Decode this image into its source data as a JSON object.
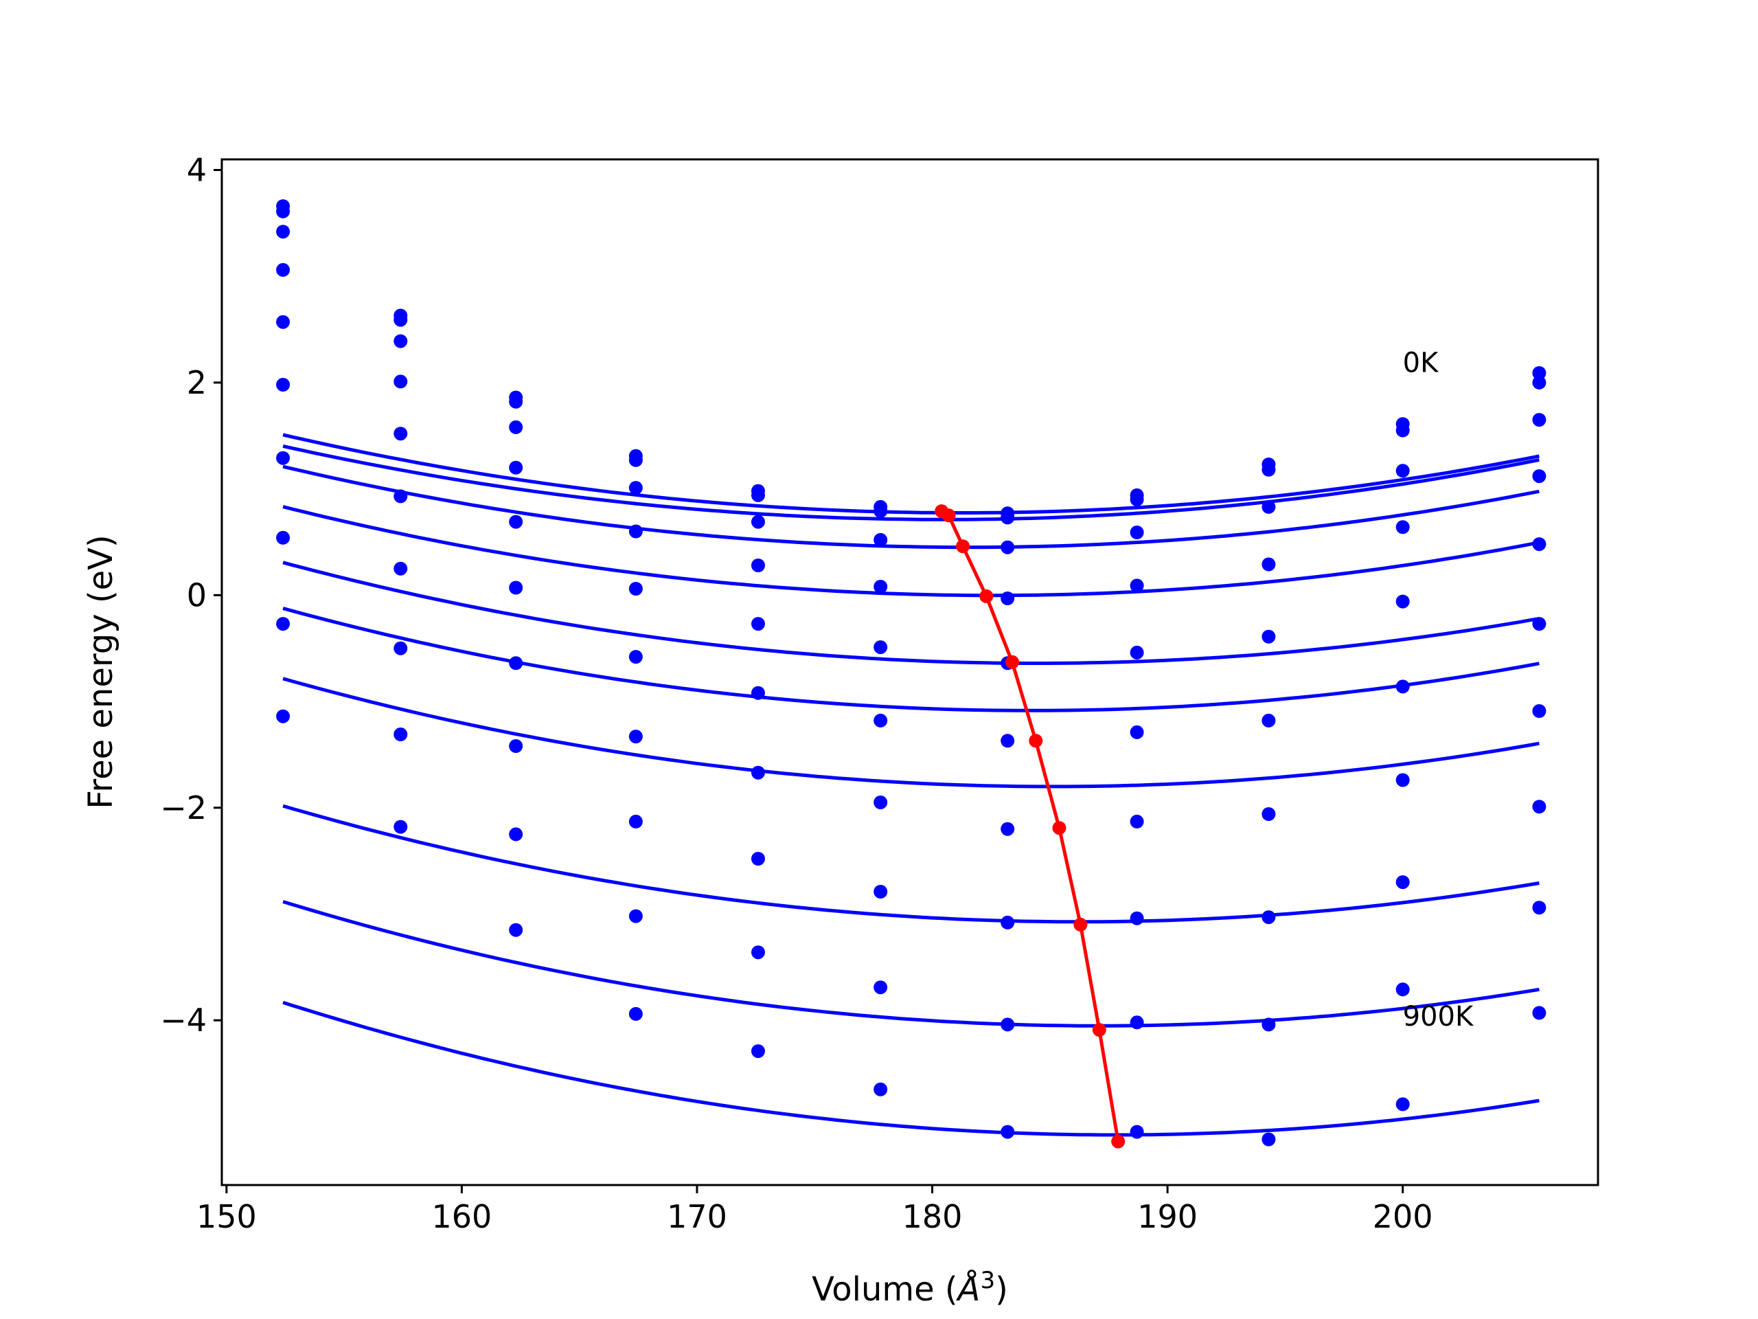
{
  "chart_data": {
    "type": "scatter",
    "xlabel_main": "Volume (",
    "xlabel_unit": "Å",
    "xlabel_exp": "3",
    "xlabel_close": ")",
    "ylabel": "Free energy (eV)",
    "xlim": [
      149.8,
      208.3
    ],
    "ylim": [
      -5.55,
      4.1
    ],
    "x_ticks": [
      150,
      160,
      170,
      180,
      190,
      200
    ],
    "x_tick_labels": [
      "150",
      "160",
      "170",
      "180",
      "190",
      "200"
    ],
    "y_ticks": [
      4,
      2,
      0,
      -2,
      -4
    ],
    "y_tick_labels": [
      "4",
      "2",
      "0",
      "−2",
      "−4"
    ],
    "grid": false,
    "annotations": [
      {
        "text": "0K",
        "x": 200.0,
        "y": 2.1
      },
      {
        "text": "900K",
        "x": 200.0,
        "y": -4.05
      }
    ],
    "x": [
      152.4,
      157.4,
      162.3,
      167.4,
      172.6,
      177.8,
      183.2,
      188.7,
      194.3,
      200.0,
      205.8
    ],
    "series": [
      {
        "color": "#0000ff",
        "points": [
          3.66,
          2.63,
          1.86,
          1.31,
          0.98,
          0.83,
          0.77,
          0.94,
          1.23,
          1.61,
          2.09
        ],
        "fit": [
          0.000884,
          -0.3204,
          29.806,
          152.4,
          205.8
        ]
      },
      {
        "color": "#0000ff",
        "points": [
          3.61,
          2.59,
          1.82,
          1.27,
          0.94,
          0.79,
          0.73,
          0.9,
          1.18,
          1.55,
          2.0
        ],
        "fit": [
          0.000876,
          -0.3162,
          29.245,
          152.4,
          205.8
        ]
      },
      {
        "color": "#0000ff",
        "points": [
          3.42,
          2.39,
          1.58,
          1.01,
          0.69,
          0.52,
          0.45,
          0.59,
          0.83,
          1.17,
          1.65
        ],
        "fit": [
          0.000894,
          -0.3246,
          29.915,
          152.4,
          205.8
        ]
      },
      {
        "color": "#0000ff",
        "points": [
          3.06,
          2.01,
          1.2,
          0.6,
          0.28,
          0.08,
          -0.03,
          0.09,
          0.29,
          0.64,
          1.12
        ],
        "fit": [
          0.000919,
          -0.3355,
          30.618,
          152.4,
          205.8
        ]
      },
      {
        "color": "#0000ff",
        "points": [
          2.57,
          1.52,
          0.69,
          0.06,
          -0.27,
          -0.49,
          -0.64,
          -0.54,
          -0.39,
          -0.06,
          0.48
        ],
        "fit": [
          0.000923,
          -0.3405,
          30.762,
          152.4,
          205.8
        ]
      },
      {
        "color": "#0000ff",
        "points": [
          1.98,
          0.93,
          0.07,
          -0.58,
          -0.92,
          -1.18,
          -1.37,
          -1.29,
          -1.18,
          -0.86,
          -0.27
        ],
        "fit": [
          0.00095,
          -0.35,
          31.151,
          152.4,
          205.8
        ]
      },
      {
        "color": "#0000ff",
        "points": [
          1.29,
          0.25,
          -0.64,
          -1.33,
          -1.67,
          -1.95,
          -2.2,
          -2.13,
          -2.06,
          -1.74,
          -1.09
        ],
        "fit": [
          0.000948,
          -0.351,
          30.689,
          152.4,
          205.8
        ]
      },
      {
        "color": "#0000ff",
        "points": [
          0.54,
          -0.5,
          -1.42,
          -2.13,
          -2.48,
          -2.79,
          -3.08,
          -3.04,
          -3.03,
          -2.7,
          -1.99
        ],
        "fit": [
          0.000952,
          -0.3546,
          29.947,
          152.4,
          205.8
        ]
      },
      {
        "color": "#0000ff",
        "points": [
          -0.27,
          -1.31,
          -2.25,
          -3.02,
          -3.36,
          -3.69,
          -4.04,
          -4.02,
          -4.04,
          -3.71,
          -2.94
        ],
        "fit": [
          0.000973,
          -0.364,
          29.991,
          152.4,
          205.8
        ]
      },
      {
        "color": "#0000ff",
        "points": [
          -1.14,
          -2.18,
          -3.15,
          -3.94,
          -4.29,
          -4.65,
          -5.05,
          -5.05,
          -5.12,
          -4.79,
          -3.93
        ],
        "fit": [
          0.000995,
          -0.3737,
          30.01,
          152.4,
          205.8
        ]
      }
    ],
    "minimum_line": {
      "color": "#ff0000",
      "x": [
        180.4,
        180.7,
        181.3,
        182.3,
        183.4,
        184.4,
        185.4,
        186.3,
        187.1,
        187.9
      ],
      "y": [
        0.79,
        0.75,
        0.46,
        -0.01,
        -0.63,
        -1.37,
        -2.19,
        -3.1,
        -4.09,
        -5.14
      ]
    }
  }
}
